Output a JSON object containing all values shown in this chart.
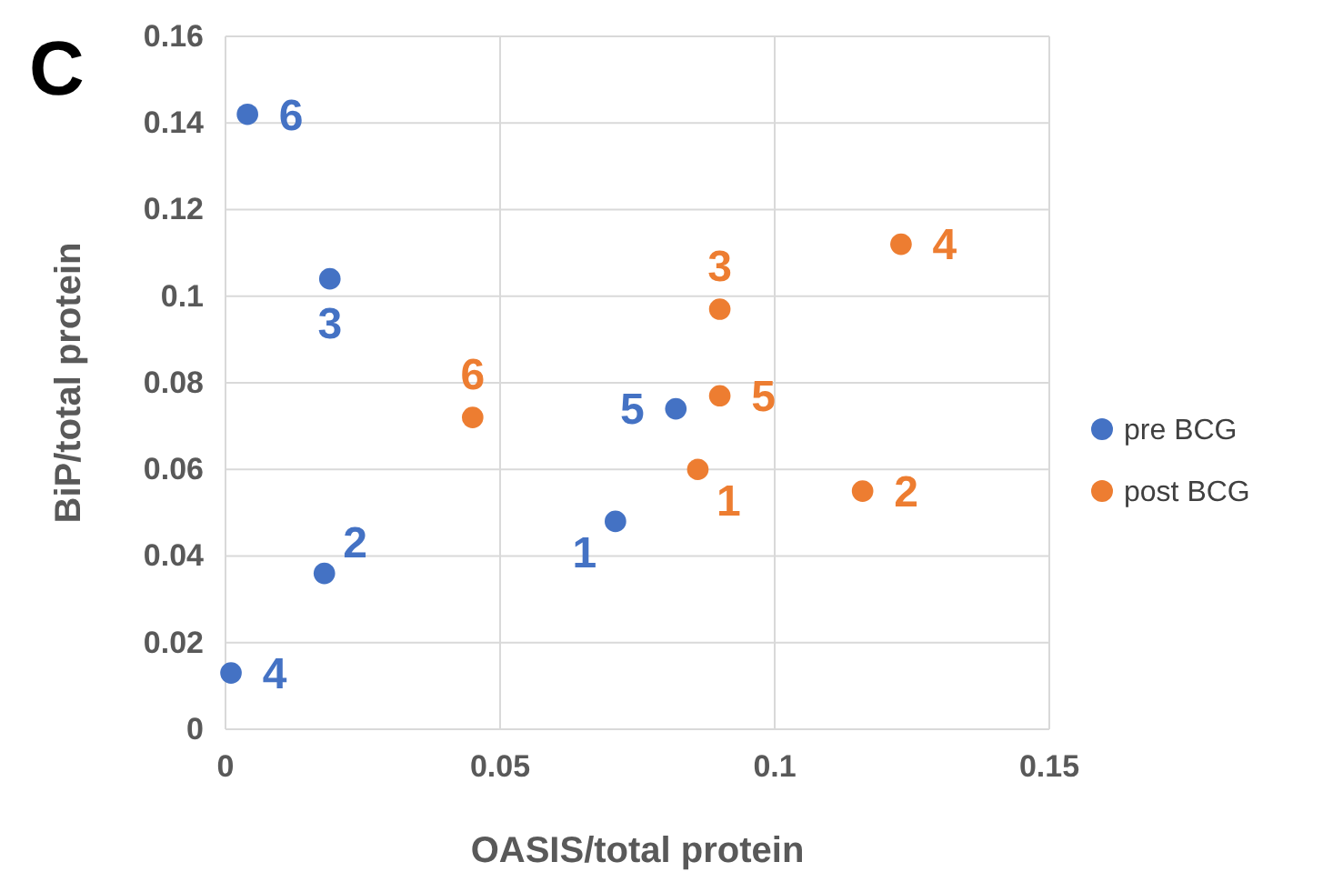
{
  "chart_data": {
    "type": "scatter",
    "xlabel": "OASIS/total protein",
    "ylabel": "BiP/total protein",
    "xlim": [
      0,
      0.15
    ],
    "xticks": [
      0,
      0.05,
      0.1,
      0.15
    ],
    "ylim": [
      0,
      0.16
    ],
    "yticks": [
      0,
      0.02,
      0.04,
      0.06,
      0.08,
      0.1,
      0.12,
      0.14,
      0.16
    ],
    "grid": true,
    "legend": "right",
    "marker": "circle",
    "series": [
      {
        "name": "pre BCG",
        "color": "#4472c4",
        "x": [
          0.004,
          0.019,
          0.082,
          0.071,
          0.018,
          0.001
        ],
        "values": [
          0.142,
          0.104,
          0.074,
          0.048,
          0.036,
          0.013
        ]
      },
      {
        "name": "post BCG",
        "color": "#ed7d31",
        "x": [
          0.123,
          0.09,
          0.09,
          0.045,
          0.086,
          0.116
        ],
        "values": [
          0.112,
          0.097,
          0.077,
          0.072,
          0.06,
          0.055
        ]
      }
    ],
    "annotations": [
      "C",
      {
        "text": "6",
        "x": 0.004,
        "y": 0.142
      },
      {
        "text": "3",
        "x": 0.019,
        "y": 0.104
      },
      {
        "text": "5",
        "x": 0.082,
        "y": 0.074
      },
      {
        "text": "1",
        "x": 0.071,
        "y": 0.048
      },
      {
        "text": "2",
        "x": 0.018,
        "y": 0.036
      },
      {
        "text": "4",
        "x": 0.001,
        "y": 0.013
      },
      {
        "text": "4",
        "x": 0.123,
        "y": 0.112
      },
      {
        "text": "3",
        "x": 0.09,
        "y": 0.097
      },
      {
        "text": "5",
        "x": 0.09,
        "y": 0.077
      },
      {
        "text": "6",
        "x": 0.045,
        "y": 0.072
      },
      {
        "text": "1",
        "x": 0.086,
        "y": 0.06
      },
      {
        "text": "2",
        "x": 0.116,
        "y": 0.055
      }
    ]
  }
}
